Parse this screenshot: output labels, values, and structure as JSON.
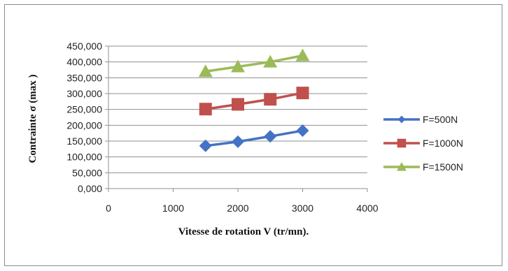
{
  "chart_data": {
    "type": "line",
    "title": "",
    "xlabel": "Vitesse de rotation V (tr/mn).",
    "ylabel": "Contrainte σ (max )",
    "xlim": [
      0,
      4000
    ],
    "ylim": [
      0,
      450
    ],
    "x_ticks": [
      0,
      1000,
      2000,
      3000,
      4000
    ],
    "y_ticks": [
      0,
      50,
      100,
      150,
      200,
      250,
      300,
      350,
      400,
      450
    ],
    "x_tick_labels": [
      "0",
      "1000",
      "2000",
      "3000",
      "4000"
    ],
    "y_tick_labels": [
      "0,000",
      "50,000",
      "100,000",
      "150,000",
      "200,000",
      "250,000",
      "300,000",
      "350,000",
      "400,000",
      "450,000"
    ],
    "grid": "horizontal",
    "legend_position": "right",
    "x": [
      1500,
      2000,
      2500,
      3000
    ],
    "series": [
      {
        "name": "F=500N",
        "values": [
          135,
          148,
          165,
          183
        ],
        "color": "#4472c4",
        "marker": "diamond"
      },
      {
        "name": "F=1000N",
        "values": [
          251,
          266,
          282,
          302
        ],
        "color": "#c0504d",
        "marker": "square"
      },
      {
        "name": "F=1500N",
        "values": [
          370,
          385,
          400,
          420
        ],
        "color": "#9bbb59",
        "marker": "triangle"
      }
    ]
  }
}
